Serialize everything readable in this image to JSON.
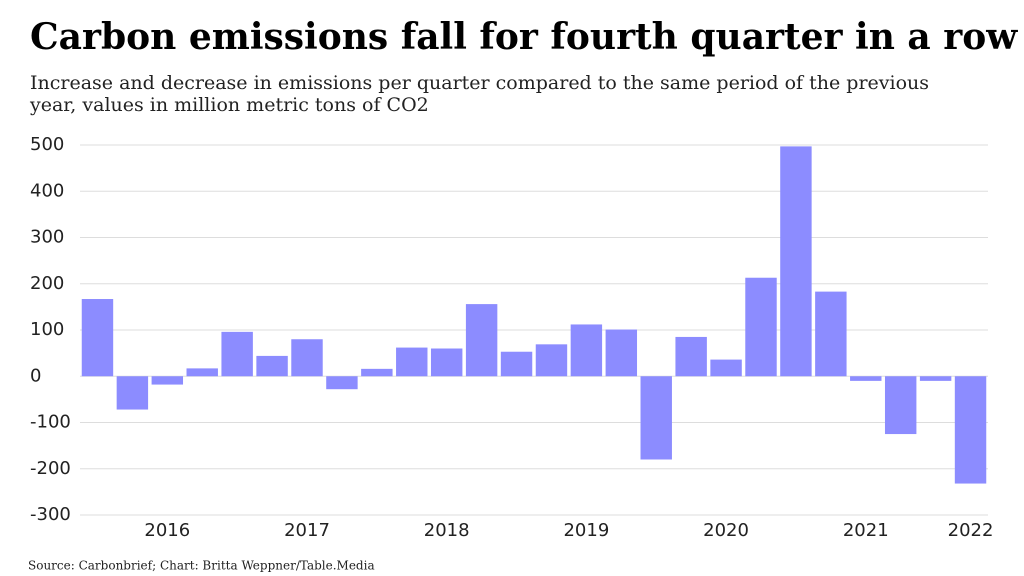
{
  "chart_data": {
    "type": "bar",
    "title": "Carbon emissions fall for fourth quarter in a row",
    "subtitle": [
      "Increase and decrease in emissions per quarter compared to the same period of the previous",
      "year, values in million metric tons of CO2"
    ],
    "source": "Source: Carbonbrief; Chart: Britta Weppner/Table.Media",
    "categories": [
      null,
      null,
      "2016",
      null,
      null,
      null,
      "2017",
      null,
      null,
      null,
      "2018",
      null,
      null,
      null,
      "2019",
      null,
      null,
      null,
      "2020",
      null,
      null,
      null,
      "2021",
      null,
      null,
      "2022"
    ],
    "values": [
      167,
      -72,
      -18,
      17,
      96,
      44,
      80,
      -28,
      16,
      62,
      60,
      156,
      53,
      69,
      112,
      101,
      -180,
      85,
      36,
      213,
      497,
      183,
      -10,
      -125,
      -10,
      -232
    ],
    "color": "#8c8cff",
    "ylim": [
      -300,
      500
    ],
    "yticks": [
      -300,
      -200,
      -100,
      0,
      100,
      200,
      300,
      400,
      500
    ],
    "grid": true
  }
}
